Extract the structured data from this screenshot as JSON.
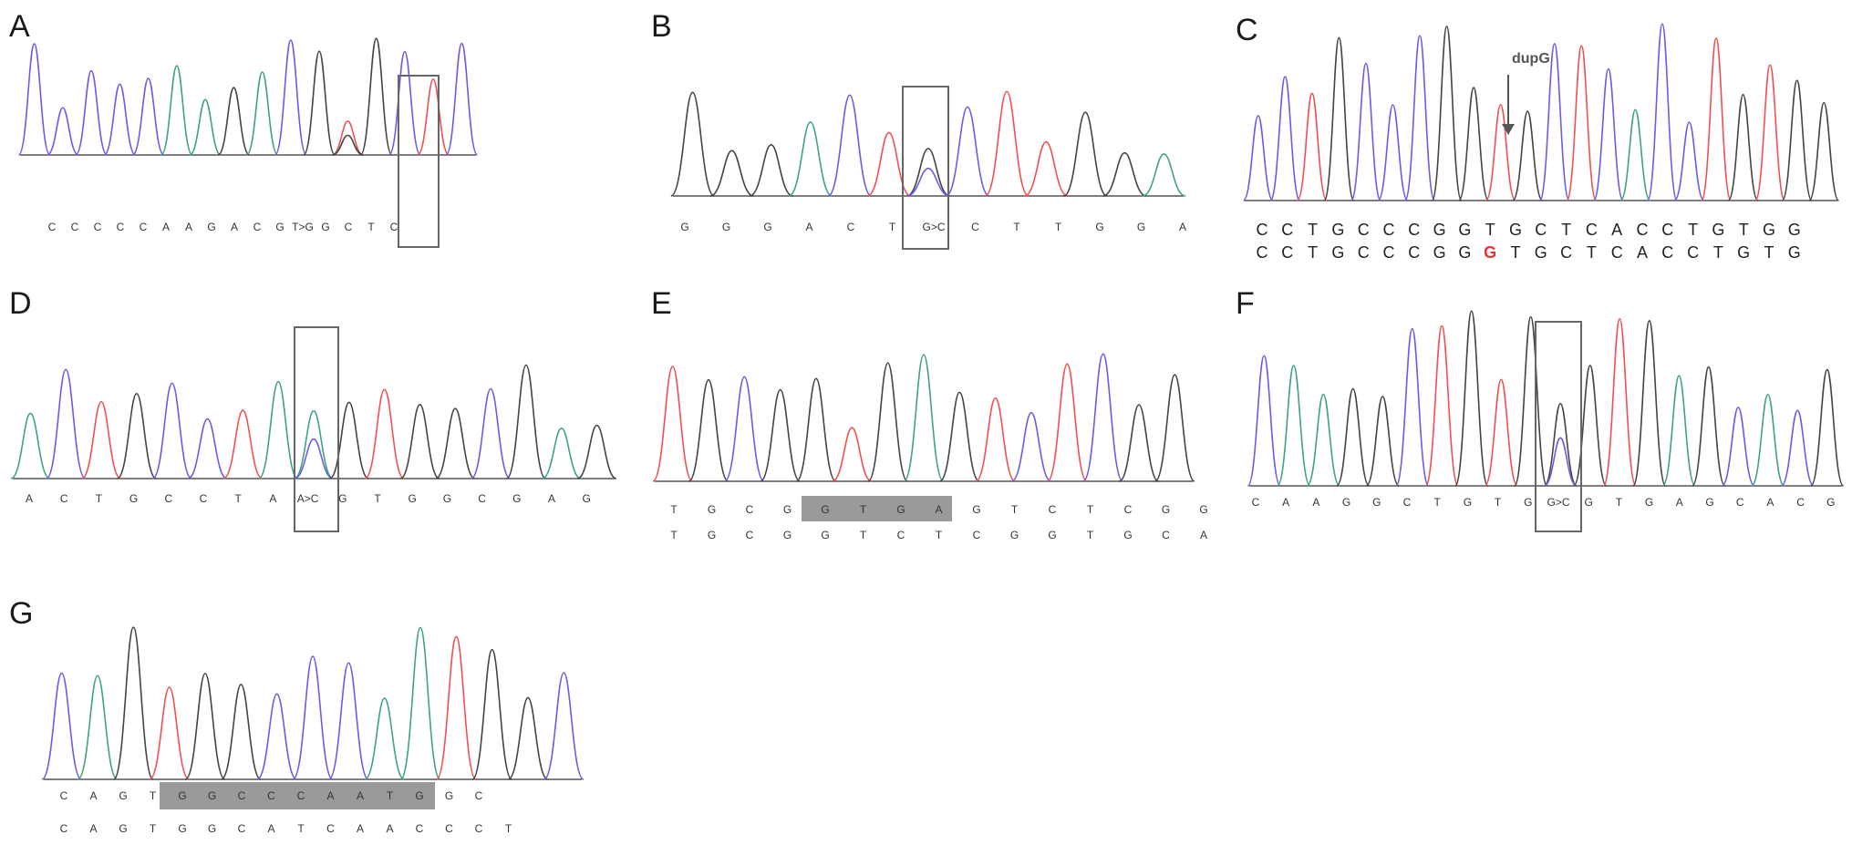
{
  "panels": [
    {
      "id": "A",
      "label": "A",
      "seq": [
        "C",
        "C",
        "C",
        "C",
        "C",
        "A",
        "A",
        "G",
        "A",
        "C",
        "G",
        "T>G",
        "G",
        "C",
        "T",
        "C"
      ],
      "peaks": [
        "b",
        "b",
        "b",
        "b",
        "b",
        "g",
        "g",
        "k",
        "k",
        "k",
        "k",
        "k",
        "k",
        "b",
        "r",
        "b",
        "b"
      ]
    },
    {
      "id": "B",
      "label": "B",
      "seq": [
        "G",
        "G",
        "G",
        "A",
        "C",
        "T",
        "G>C",
        "C",
        "T",
        "T",
        "G",
        "G",
        "A"
      ]
    },
    {
      "id": "C",
      "label": "C",
      "annotation": "dupG",
      "seq1": [
        "C",
        "C",
        "T",
        "G",
        "C",
        "C",
        "C",
        "G",
        "G",
        "T",
        "G",
        "C",
        "T",
        "C",
        "A",
        "C",
        "C",
        "T",
        "G",
        "T",
        "G",
        "G"
      ],
      "seq2": [
        "C",
        "C",
        "T",
        "G",
        "C",
        "C",
        "C",
        "G",
        "G",
        "G",
        "T",
        "G",
        "C",
        "T",
        "C",
        "A",
        "C",
        "C",
        "T",
        "G",
        "T",
        "G"
      ],
      "highlight_index": 9
    },
    {
      "id": "D",
      "label": "D",
      "seq": [
        "A",
        "C",
        "T",
        "G",
        "C",
        "C",
        "T",
        "A",
        "A>C",
        "G",
        "T",
        "G",
        "G",
        "C",
        "G",
        "A",
        "G"
      ]
    },
    {
      "id": "E",
      "label": "E",
      "seq1": [
        "T",
        "G",
        "C",
        "G",
        "G",
        "T",
        "G",
        "A",
        "G",
        "T",
        "C",
        "T",
        "C",
        "G",
        "G"
      ],
      "seq2": [
        "T",
        "G",
        "C",
        "G",
        "G",
        "T",
        "C",
        "T",
        "C",
        "G",
        "G",
        "T",
        "G",
        "C",
        "A"
      ]
    },
    {
      "id": "F",
      "label": "F",
      "seq": [
        "C",
        "A",
        "A",
        "G",
        "G",
        "C",
        "T",
        "G",
        "T",
        "G",
        "G>C",
        "G",
        "T",
        "G",
        "A",
        "G",
        "C",
        "A",
        "C",
        "G"
      ]
    },
    {
      "id": "G",
      "label": "G",
      "seq1": [
        "C",
        "A",
        "G",
        "T",
        "G",
        "G",
        "C",
        "C",
        "C",
        "A",
        "A",
        "T",
        "G",
        "G",
        "C"
      ],
      "seq2": [
        "C",
        "A",
        "G",
        "T",
        "G",
        "G",
        "C",
        "A",
        "T",
        "C",
        "A",
        "A",
        "C",
        "C",
        "C",
        "T"
      ]
    }
  ],
  "colors": {
    "A": "#3fa47a",
    "C": "#6b5ce7",
    "G": "#444444",
    "T": "#f05050"
  }
}
